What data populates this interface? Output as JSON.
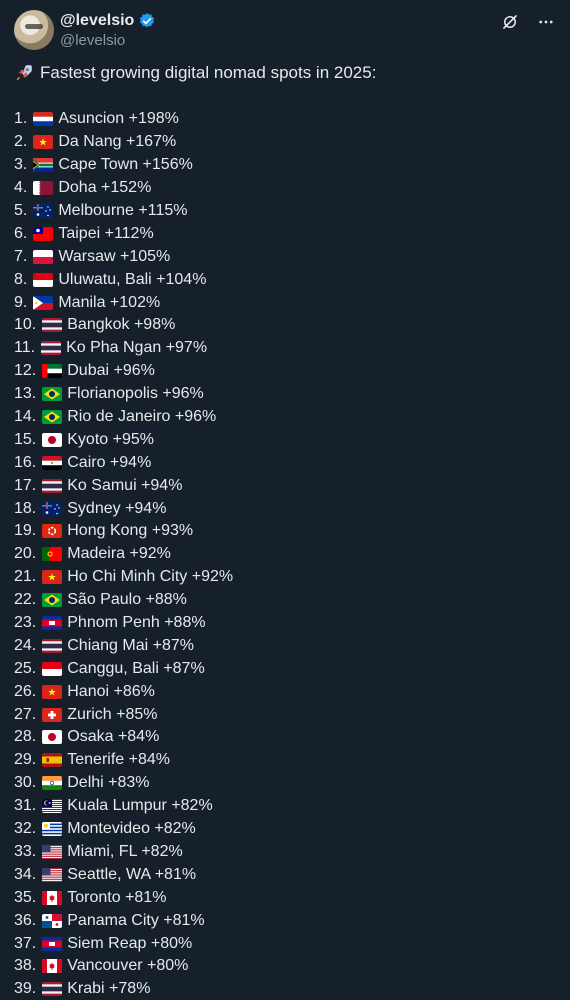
{
  "tweet": {
    "display_name": "@levelsio",
    "handle": "@levelsio",
    "headline": "Fastest growing digital nomad spots in 2025:",
    "headline_icon": "rocket-icon",
    "items": [
      {
        "rank": "1.",
        "flag": "PY",
        "text": "Asuncion +198%"
      },
      {
        "rank": "2.",
        "flag": "VN",
        "text": "Da Nang +167%"
      },
      {
        "rank": "3.",
        "flag": "ZA",
        "text": "Cape Town +156%"
      },
      {
        "rank": "4.",
        "flag": "QA",
        "text": "Doha +152%"
      },
      {
        "rank": "5.",
        "flag": "AU",
        "text": "Melbourne +115%"
      },
      {
        "rank": "6.",
        "flag": "TW",
        "text": "Taipei +112%"
      },
      {
        "rank": "7.",
        "flag": "PL",
        "text": "Warsaw +105%"
      },
      {
        "rank": "8.",
        "flag": "ID",
        "text": "Uluwatu, Bali +104%"
      },
      {
        "rank": "9.",
        "flag": "PH",
        "text": "Manila +102%"
      },
      {
        "rank": "10.",
        "flag": "TH",
        "text": "Bangkok +98%"
      },
      {
        "rank": "11.",
        "flag": "TH",
        "text": "Ko Pha Ngan +97%"
      },
      {
        "rank": "12.",
        "flag": "AE",
        "text": "Dubai +96%"
      },
      {
        "rank": "13.",
        "flag": "BR",
        "text": "Florianopolis +96%"
      },
      {
        "rank": "14.",
        "flag": "BR",
        "text": "Rio de Janeiro +96%"
      },
      {
        "rank": "15.",
        "flag": "JP",
        "text": "Kyoto +95%"
      },
      {
        "rank": "16.",
        "flag": "EG",
        "text": "Cairo +94%"
      },
      {
        "rank": "17.",
        "flag": "TH",
        "text": "Ko Samui +94%"
      },
      {
        "rank": "18.",
        "flag": "AU",
        "text": "Sydney +94%"
      },
      {
        "rank": "19.",
        "flag": "HK",
        "text": "Hong Kong +93%"
      },
      {
        "rank": "20.",
        "flag": "PT",
        "text": "Madeira +92%"
      },
      {
        "rank": "21.",
        "flag": "VN",
        "text": "Ho Chi Minh City +92%"
      },
      {
        "rank": "22.",
        "flag": "BR",
        "text": "São Paulo +88%"
      },
      {
        "rank": "23.",
        "flag": "KH",
        "text": "Phnom Penh +88%"
      },
      {
        "rank": "24.",
        "flag": "TH",
        "text": "Chiang Mai +87%"
      },
      {
        "rank": "25.",
        "flag": "ID",
        "text": "Canggu, Bali +87%"
      },
      {
        "rank": "26.",
        "flag": "VN",
        "text": "Hanoi +86%"
      },
      {
        "rank": "27.",
        "flag": "CH",
        "text": "Zurich +85%"
      },
      {
        "rank": "28.",
        "flag": "JP",
        "text": "Osaka +84%"
      },
      {
        "rank": "29.",
        "flag": "ES",
        "text": "Tenerife +84%"
      },
      {
        "rank": "30.",
        "flag": "IN",
        "text": "Delhi +83%"
      },
      {
        "rank": "31.",
        "flag": "MY",
        "text": "Kuala Lumpur +82%"
      },
      {
        "rank": "32.",
        "flag": "UY",
        "text": "Montevideo +82%"
      },
      {
        "rank": "33.",
        "flag": "US",
        "text": "Miami, FL +82%"
      },
      {
        "rank": "34.",
        "flag": "US",
        "text": "Seattle, WA +81%"
      },
      {
        "rank": "35.",
        "flag": "CA",
        "text": "Toronto +81%"
      },
      {
        "rank": "36.",
        "flag": "PA",
        "text": "Panama City +81%"
      },
      {
        "rank": "37.",
        "flag": "KH",
        "text": "Siem Reap +80%"
      },
      {
        "rank": "38.",
        "flag": "CA",
        "text": "Vancouver +80%"
      },
      {
        "rank": "39.",
        "flag": "TH",
        "text": "Krabi +78%"
      }
    ]
  },
  "colors": {
    "background": "#15202b",
    "text": "#e7e9ea",
    "muted": "#8b98a5",
    "verified": "#1d9bf0"
  },
  "icons": {
    "verified": "verified-badge-icon",
    "grok": "grok-icon",
    "more": "more-options-icon"
  }
}
